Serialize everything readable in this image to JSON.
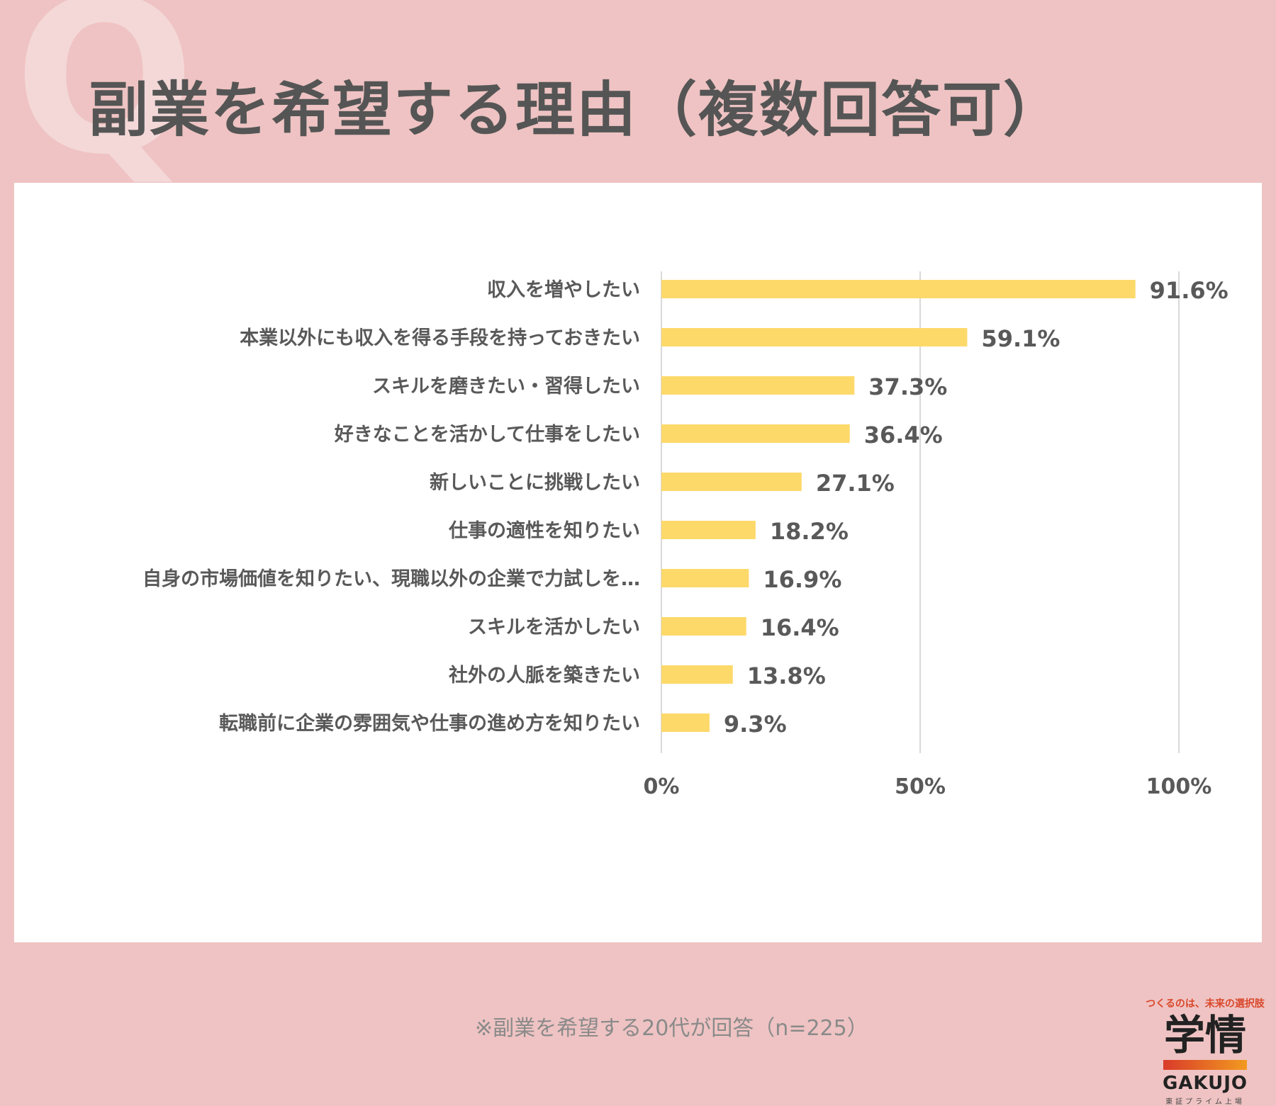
{
  "decoration": {
    "q_letter": "Q"
  },
  "title": "副業を希望する理由（複数回答可）",
  "note": "※副業を希望する20代が回答（n=225）",
  "logo": {
    "tagline": "つくるのは、未来の選択肢",
    "main": "学情",
    "english": "GAKUJO",
    "sub": "東証プライム上場"
  },
  "colors": {
    "bar": "#fdd96a",
    "grid": "#d9d9d9",
    "text": "#595959",
    "background": "#efc3c3"
  },
  "chart_data": {
    "type": "bar",
    "orientation": "horizontal",
    "categories": [
      "収入を増やしたい",
      "本業以外にも収入を得る手段を持っておきたい",
      "スキルを磨きたい・習得したい",
      "好きなことを活かして仕事をしたい",
      "新しいことに挑戦したい",
      "仕事の適性を知りたい",
      "自身の市場価値を知りたい、現職以外の企業で力試しを…",
      "スキルを活かしたい",
      "社外の人脈を築きたい",
      "転職前に企業の雰囲気や仕事の進め方を知りたい"
    ],
    "values": [
      91.6,
      59.1,
      37.3,
      36.4,
      27.1,
      18.2,
      16.9,
      16.4,
      13.8,
      9.3
    ],
    "value_labels": [
      "91.6%",
      "59.1%",
      "37.3%",
      "36.4%",
      "27.1%",
      "18.2%",
      "16.9%",
      "16.4%",
      "13.8%",
      "9.3%"
    ],
    "xlim": [
      0,
      100
    ],
    "x_ticks": [
      0,
      50,
      100
    ],
    "x_tick_labels": [
      "0%",
      "50%",
      "100%"
    ],
    "grid": true
  }
}
